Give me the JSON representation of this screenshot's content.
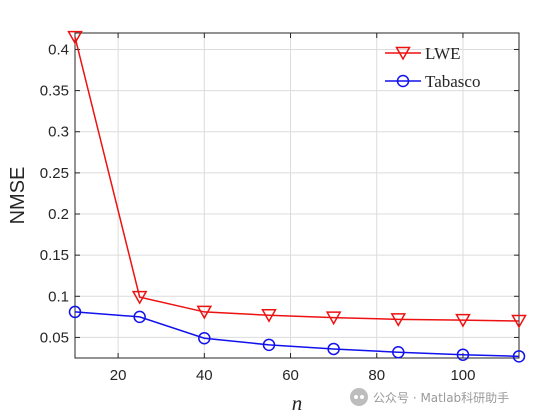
{
  "chart_data": {
    "type": "line",
    "title": "",
    "xlabel": "n",
    "ylabel": "NMSE",
    "xlim": [
      10,
      113
    ],
    "ylim": [
      0.025,
      0.42
    ],
    "xticks": [
      20,
      40,
      60,
      80,
      100
    ],
    "xtick_labels": [
      "20",
      "40",
      "60",
      "80",
      "100"
    ],
    "yticks": [
      0.05,
      0.1,
      0.15,
      0.2,
      0.25,
      0.3,
      0.35,
      0.4
    ],
    "ytick_labels": [
      "0.05",
      "0.1",
      "0.15",
      "0.2",
      "0.25",
      "0.3",
      "0.35",
      "0.4"
    ],
    "grid": true,
    "legend_position": "top-right",
    "series": [
      {
        "name": "LWE",
        "color": "#ee1111",
        "marker": "triangle-down",
        "x": [
          10,
          25,
          40,
          55,
          70,
          85,
          100,
          113
        ],
        "y": [
          0.415,
          0.099,
          0.081,
          0.077,
          0.074,
          0.072,
          0.071,
          0.07
        ]
      },
      {
        "name": "Tabasco",
        "color": "#1111ee",
        "marker": "circle",
        "x": [
          10,
          25,
          40,
          55,
          70,
          85,
          100,
          113
        ],
        "y": [
          0.081,
          0.075,
          0.049,
          0.041,
          0.036,
          0.032,
          0.029,
          0.027
        ]
      }
    ]
  },
  "watermark": {
    "icon": "wechat-icon",
    "text": "公众号 · Matlab科研助手"
  }
}
